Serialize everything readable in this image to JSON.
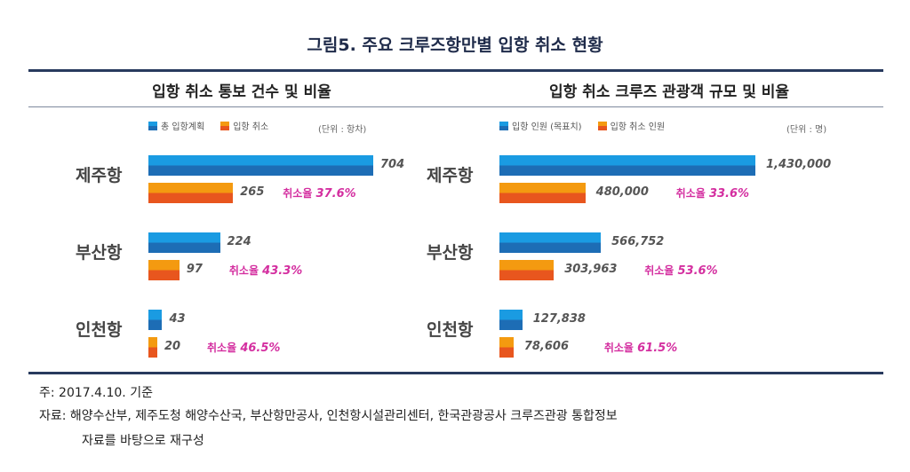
{
  "title": "그림5. 주요 크루즈항만별 입항 취소 현황",
  "colors": {
    "blue_top": "#1a9be2",
    "blue_bottom": "#1d6db5",
    "orange_top": "#f49a10",
    "orange_bottom": "#e8561e",
    "rate": "#d42fa0",
    "rule": "#283a5e"
  },
  "chart_data": [
    {
      "type": "bar",
      "orientation": "horizontal",
      "title": "입항 취소 통보 건수 및 비율",
      "unit": "(단위 : 항차)",
      "categories": [
        "제주항",
        "부산항",
        "인천항"
      ],
      "series": [
        {
          "name": "총 입항계획",
          "values": [
            704,
            224,
            43
          ],
          "labels": [
            "704",
            "224",
            "43"
          ]
        },
        {
          "name": "입항 취소",
          "values": [
            265,
            97,
            20
          ],
          "labels": [
            "265",
            "97",
            "20"
          ]
        }
      ],
      "rate_prefix": "취소율",
      "rates": [
        "37.6%",
        "43.3%",
        "46.5%"
      ],
      "xmax": 704
    },
    {
      "type": "bar",
      "orientation": "horizontal",
      "title": "입항 취소 크루즈 관광객 규모 및 비율",
      "unit": "(단위 : 명)",
      "categories": [
        "제주항",
        "부산항",
        "인천항"
      ],
      "series": [
        {
          "name": "입항 인원 (목표치)",
          "values": [
            1430000,
            566752,
            127838
          ],
          "labels": [
            "1,430,000",
            "566,752",
            "127,838"
          ]
        },
        {
          "name": "입항 취소 인원",
          "values": [
            480000,
            303963,
            78606
          ],
          "labels": [
            "480,000",
            "303,963",
            "78,606"
          ]
        }
      ],
      "rate_prefix": "취소율",
      "rates": [
        "33.6%",
        "53.6%",
        "61.5%"
      ],
      "xmax": 1430000
    }
  ],
  "notes": {
    "date": "주: 2017.4.10. 기준",
    "source1": "자료: 해양수산부, 제주도청 해양수산국, 부산항만공사, 인천항시설관리센터, 한국관광공사 크루즈관광 통합정보",
    "source2": "자료를 바탕으로 재구성"
  }
}
